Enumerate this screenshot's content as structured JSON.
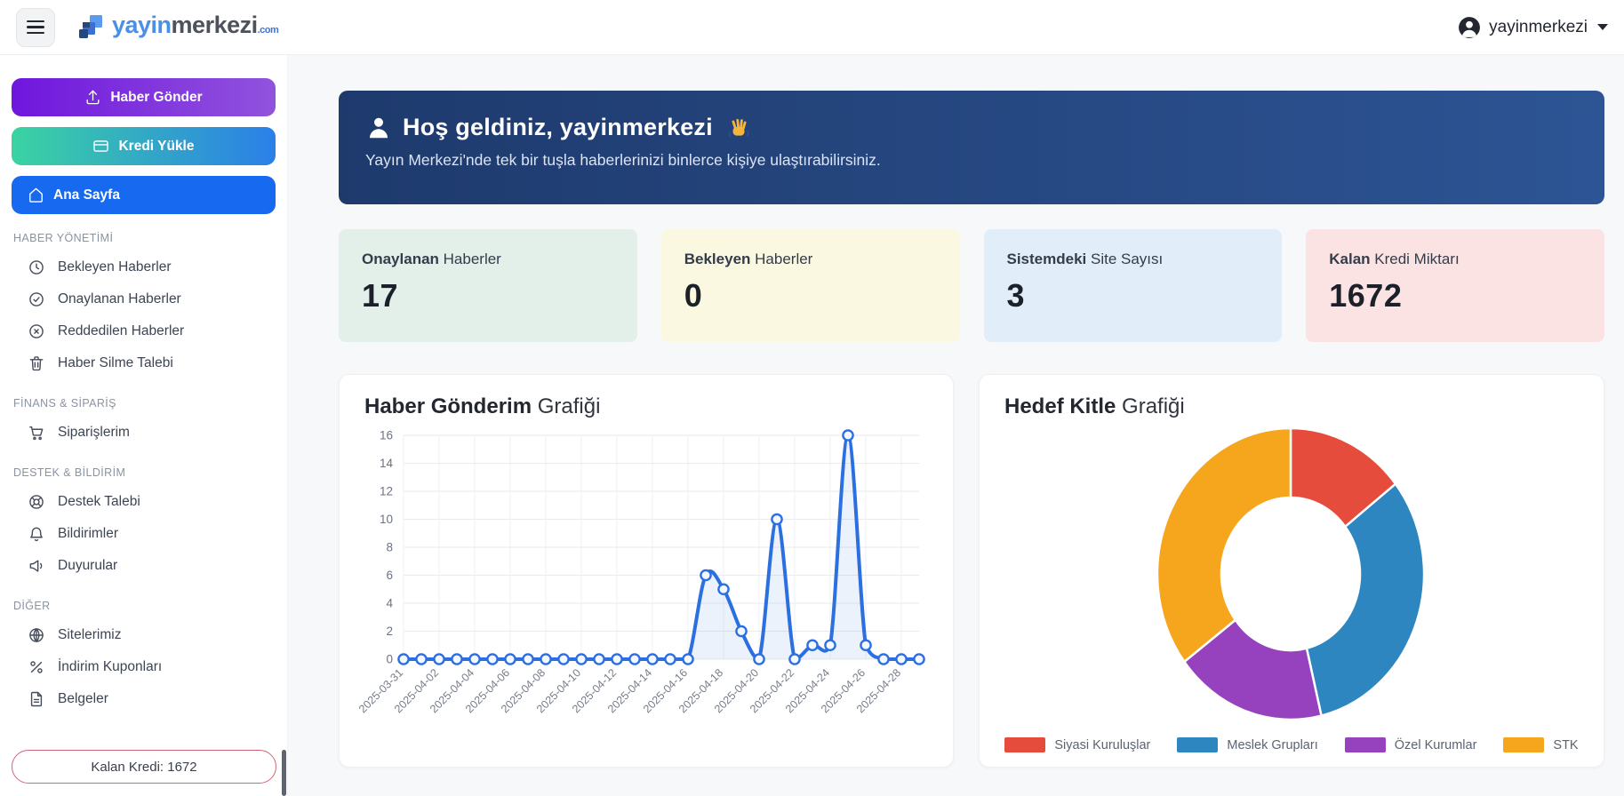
{
  "header": {
    "brand": {
      "word_primary": "yayin",
      "word_secondary": "merkezi",
      "tld": ".com"
    },
    "user_menu": {
      "label": "yayinmerkezi"
    }
  },
  "sidebar": {
    "actions": [
      {
        "label": "Haber Gönder",
        "icon": "upload-icon",
        "gradient": [
          "#6f16dd",
          "#9153dd"
        ],
        "align": "center"
      },
      {
        "label": "Kredi Yükle",
        "icon": "credit-card-icon",
        "gradient": [
          "#3bd3a2",
          "#2b7fe8"
        ],
        "align": "center"
      },
      {
        "label": "Ana Sayfa",
        "icon": "home-icon",
        "gradient": [
          "#1769f0",
          "#1769f0"
        ],
        "align": "left"
      }
    ],
    "sections": [
      {
        "title": "HABER YÖNETİMİ",
        "items": [
          {
            "label": "Bekleyen Haberler",
            "icon": "clock-icon"
          },
          {
            "label": "Onaylanan Haberler",
            "icon": "check-circle-icon"
          },
          {
            "label": "Reddedilen Haberler",
            "icon": "x-circle-icon"
          },
          {
            "label": "Haber Silme Talebi",
            "icon": "trash-icon"
          }
        ]
      },
      {
        "title": "FİNANS & SİPARİŞ",
        "items": [
          {
            "label": "Siparişlerim",
            "icon": "cart-icon"
          }
        ]
      },
      {
        "title": "DESTEK & BİLDİRİM",
        "items": [
          {
            "label": "Destek Talebi",
            "icon": "life-buoy-icon"
          },
          {
            "label": "Bildirimler",
            "icon": "bell-icon"
          },
          {
            "label": "Duyurular",
            "icon": "megaphone-icon"
          }
        ]
      },
      {
        "title": "DİĞER",
        "items": [
          {
            "label": "Sitelerimiz",
            "icon": "globe-icon"
          },
          {
            "label": "İndirim Kuponları",
            "icon": "percent-icon"
          },
          {
            "label": "Belgeler",
            "icon": "file-icon"
          }
        ]
      }
    ],
    "credit_pill": "Kalan Kredi: 1672"
  },
  "main": {
    "welcome": {
      "title": "Hoş geldiniz, yayinmerkezi",
      "hand_emoji": "👋",
      "subtitle": "Yayın Merkezi'nde tek bir tuşla haberlerinizi binlerce kişiye ulaştırabilirsiniz.",
      "bg_gradient": [
        "#1e3a6d",
        "#2d5494"
      ]
    },
    "stats": [
      {
        "label_bold": "Onaylanan",
        "label_rest": " Haberler",
        "value": "17",
        "bg": "#e2f0e9"
      },
      {
        "label_bold": "Bekleyen",
        "label_rest": " Haberler",
        "value": "0",
        "bg": "#faf8e1"
      },
      {
        "label_bold": "Sistemdeki",
        "label_rest": " Site Sayısı",
        "value": "3",
        "bg": "#e1eefa"
      },
      {
        "label_bold": "Kalan",
        "label_rest": " Kredi Miktarı",
        "value": "1672",
        "bg": "#fbe3e4"
      }
    ]
  },
  "chart_data": [
    {
      "type": "line",
      "title_bold": "Haber Gönderim",
      "title_rest": " Grafiği",
      "x": [
        "2025-03-31",
        "2025-04-01",
        "2025-04-02",
        "2025-04-03",
        "2025-04-04",
        "2025-04-05",
        "2025-04-06",
        "2025-04-07",
        "2025-04-08",
        "2025-04-09",
        "2025-04-10",
        "2025-04-11",
        "2025-04-12",
        "2025-04-13",
        "2025-04-14",
        "2025-04-15",
        "2025-04-16",
        "2025-04-17",
        "2025-04-18",
        "2025-04-19",
        "2025-04-20",
        "2025-04-21",
        "2025-04-22",
        "2025-04-23",
        "2025-04-24",
        "2025-04-25",
        "2025-04-26",
        "2025-04-27",
        "2025-04-28",
        "2025-04-29"
      ],
      "values": [
        0,
        0,
        0,
        0,
        0,
        0,
        0,
        0,
        0,
        0,
        0,
        0,
        0,
        0,
        0,
        0,
        0,
        6,
        5,
        2,
        0,
        10,
        0,
        1,
        1,
        16,
        1,
        0,
        0,
        0
      ],
      "ylim": [
        0,
        16
      ],
      "yticks": [
        0,
        2,
        4,
        6,
        8,
        10,
        12,
        14,
        16
      ],
      "xtick_every": 2,
      "grid": true,
      "legend_position": "none",
      "line_color": "#2b6fe0",
      "point_fill": "#f3f7fe",
      "area_fill": "rgba(43,111,224,0.09)"
    },
    {
      "type": "pie",
      "subtype": "donut",
      "title_bold": "Hedef Kitle",
      "title_rest": " Grafiği",
      "labels": [
        "Siyasi Kuruluşlar",
        "Meslek Grupları",
        "Özel Kurumlar",
        "STK"
      ],
      "values_percent": [
        14.4,
        31.9,
        18.4,
        35.3
      ],
      "colors": [
        "#e64c3c",
        "#2e86c1",
        "#9641bd",
        "#f5a61d"
      ],
      "legend_position": "bottom"
    }
  ]
}
